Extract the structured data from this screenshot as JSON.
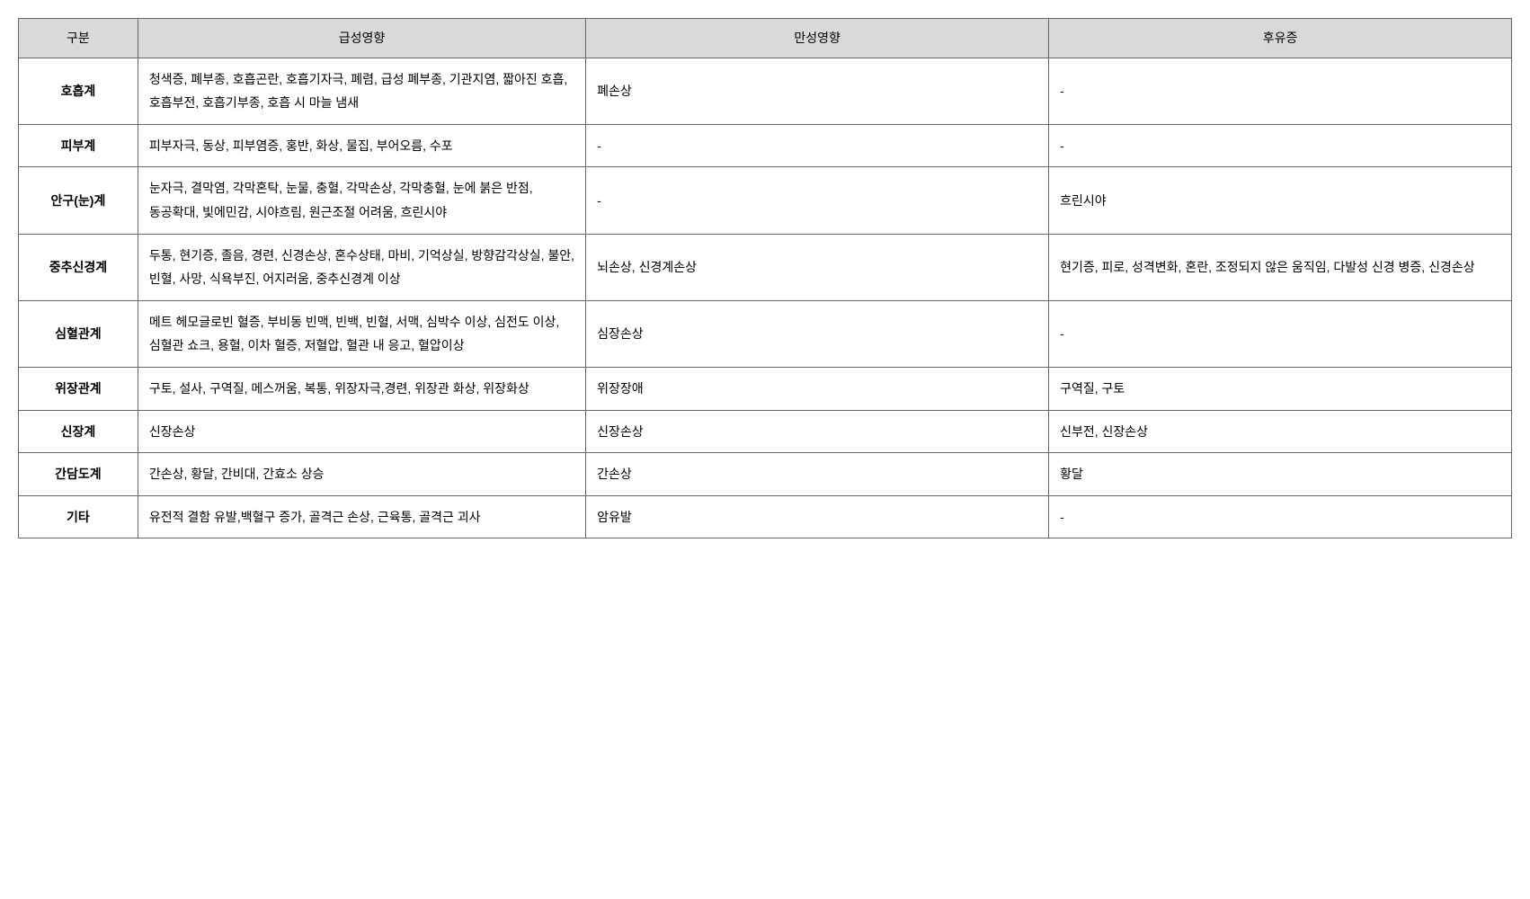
{
  "table": {
    "type": "table",
    "headers": {
      "category": "구분",
      "acute": "급성영향",
      "chronic": "만성영향",
      "aftereffect": "후유증"
    },
    "rows": [
      {
        "category": "호흡계",
        "acute": "청색증, 폐부종, 호흡곤란, 호흡기자극, 폐렴, 급성 폐부종, 기관지염, 짧아진 호흡, 호흡부전, 호흡기부종, 호흡 시 마늘 냄새",
        "chronic": "폐손상",
        "aftereffect": "-"
      },
      {
        "category": "피부계",
        "acute": "피부자극, 동상, 피부염증, 홍반, 화상, 물집, 부어오름, 수포",
        "chronic": "-",
        "aftereffect": "-"
      },
      {
        "category": "안구(눈)계",
        "acute": "눈자극, 결막염, 각막혼탁, 눈물, 충혈, 각막손상, 각막충혈, 눈에 붉은 반점, 동공확대, 빛에민감, 시야흐림, 원근조절 어려움, 흐린시야",
        "chronic": "-",
        "aftereffect": "흐린시야"
      },
      {
        "category": "중추신경계",
        "acute": "두통, 현기증, 졸음, 경련, 신경손상, 혼수상태, 마비, 기억상실, 방향감각상실, 불안, 빈혈, 사망, 식욕부진, 어지러움, 중추신경계 이상",
        "chronic": "뇌손상, 신경계손상",
        "aftereffect": "현기증, 피로, 성격변화, 혼란, 조정되지 않은 움직임, 다발성 신경 병증, 신경손상"
      },
      {
        "category": "심혈관계",
        "acute": "메트 헤모글로빈 혈증, 부비동 빈맥, 빈백, 빈혈, 서맥, 심박수 이상, 심전도 이상, 심혈관 쇼크, 용혈, 이차 혈증, 저혈압, 혈관 내 응고, 혈압이상",
        "chronic": "심장손상",
        "aftereffect": "-"
      },
      {
        "category": "위장관계",
        "acute": "구토, 설사, 구역질, 메스꺼움, 복통, 위장자극,경련, 위장관 화상, 위장화상",
        "chronic": "위장장애",
        "aftereffect": "구역질, 구토"
      },
      {
        "category": "신장계",
        "acute": "신장손상",
        "chronic": "신장손상",
        "aftereffect": "신부전, 신장손상"
      },
      {
        "category": "간담도계",
        "acute": "간손상, 황달, 간비대, 간효소 상승",
        "chronic": "간손상",
        "aftereffect": "황달"
      },
      {
        "category": "기타",
        "acute": "유전적 결함 유발,백혈구 증가, 골격근 손상, 근육통, 골격근 괴사",
        "chronic": "암유발",
        "aftereffect": "-"
      }
    ],
    "column_widths": [
      "8%",
      "30%",
      "31%",
      "31%"
    ],
    "header_bg_color": "#d9d9d9",
    "border_color": "#666666",
    "font_size": 14,
    "line_height": 1.9
  }
}
